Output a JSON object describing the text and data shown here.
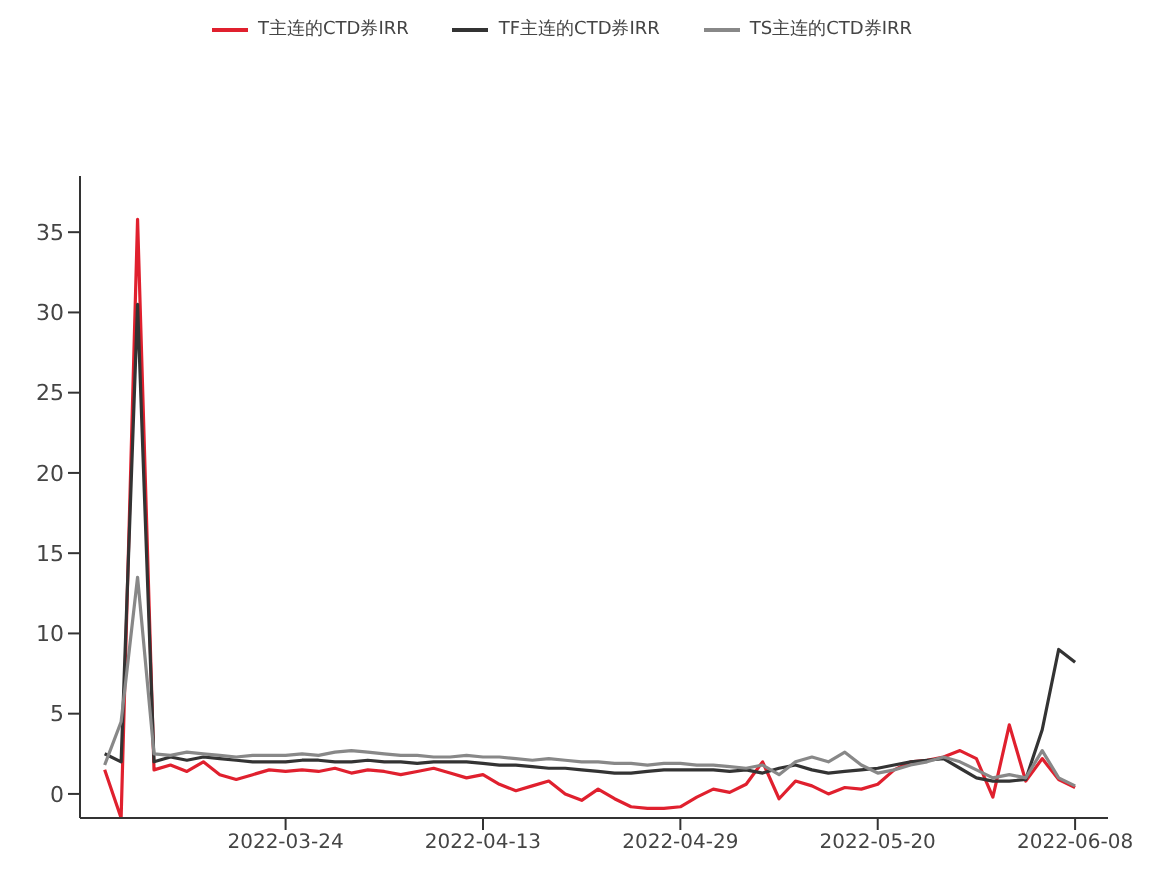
{
  "chart_data": {
    "type": "line",
    "categories": [
      null,
      null,
      null,
      null,
      null,
      null,
      null,
      null,
      null,
      null,
      null,
      "2022-03-24",
      null,
      null,
      null,
      null,
      null,
      null,
      null,
      null,
      null,
      null,
      null,
      "2022-04-13",
      null,
      null,
      null,
      null,
      null,
      null,
      null,
      null,
      null,
      null,
      null,
      "2022-04-29",
      null,
      null,
      null,
      null,
      null,
      null,
      null,
      null,
      null,
      null,
      null,
      "2022-05-20",
      null,
      null,
      null,
      null,
      null,
      null,
      null,
      null,
      null,
      null,
      null,
      "2022-06-08"
    ],
    "series": [
      {
        "name": "T主连的CTD券IRR",
        "color": "#e0202e",
        "values": [
          1.5,
          -1.5,
          35.8,
          1.5,
          1.8,
          1.4,
          2.0,
          1.2,
          0.9,
          1.2,
          1.5,
          1.4,
          1.5,
          1.4,
          1.6,
          1.3,
          1.5,
          1.4,
          1.2,
          1.4,
          1.6,
          1.3,
          1.0,
          1.2,
          0.6,
          0.2,
          0.5,
          0.8,
          0.0,
          -0.4,
          0.3,
          -0.3,
          -0.8,
          -0.9,
          -0.9,
          -0.8,
          -0.2,
          0.3,
          0.1,
          0.6,
          2.0,
          -0.3,
          0.8,
          0.5,
          0.0,
          0.4,
          0.3,
          0.6,
          1.5,
          2.0,
          2.1,
          2.3,
          2.7,
          2.2,
          -0.2,
          4.3,
          0.8,
          2.2,
          0.9,
          0.4
        ]
      },
      {
        "name": "TF主连的CTD券IRR",
        "color": "#333333",
        "values": [
          2.5,
          2.0,
          30.5,
          2.0,
          2.3,
          2.1,
          2.3,
          2.2,
          2.1,
          2.0,
          2.0,
          2.0,
          2.1,
          2.1,
          2.0,
          2.0,
          2.1,
          2.0,
          2.0,
          1.9,
          2.0,
          2.0,
          2.0,
          1.9,
          1.8,
          1.8,
          1.7,
          1.6,
          1.6,
          1.5,
          1.4,
          1.3,
          1.3,
          1.4,
          1.5,
          1.5,
          1.5,
          1.5,
          1.4,
          1.5,
          1.3,
          1.6,
          1.8,
          1.5,
          1.3,
          1.4,
          1.5,
          1.6,
          1.8,
          2.0,
          2.1,
          2.2,
          1.6,
          1.0,
          0.8,
          0.8,
          0.9,
          4.0,
          9.0,
          8.2
        ]
      },
      {
        "name": "TS主连的CTD券IRR",
        "color": "#888888",
        "values": [
          1.8,
          4.5,
          13.5,
          2.5,
          2.4,
          2.6,
          2.5,
          2.4,
          2.3,
          2.4,
          2.4,
          2.4,
          2.5,
          2.4,
          2.6,
          2.7,
          2.6,
          2.5,
          2.4,
          2.4,
          2.3,
          2.3,
          2.4,
          2.3,
          2.3,
          2.2,
          2.1,
          2.2,
          2.1,
          2.0,
          2.0,
          1.9,
          1.9,
          1.8,
          1.9,
          1.9,
          1.8,
          1.8,
          1.7,
          1.6,
          1.8,
          1.2,
          2.0,
          2.3,
          2.0,
          2.6,
          1.8,
          1.3,
          1.5,
          1.8,
          2.0,
          2.3,
          2.0,
          1.5,
          1.0,
          1.2,
          1.0,
          2.7,
          1.0,
          0.5
        ]
      }
    ],
    "ylim": [
      -1.5,
      38.5
    ],
    "yticks": [
      0,
      5,
      10,
      15,
      20,
      25,
      30,
      35
    ],
    "grid": false,
    "legend": "top",
    "marker": "none",
    "line_style": "solid"
  }
}
